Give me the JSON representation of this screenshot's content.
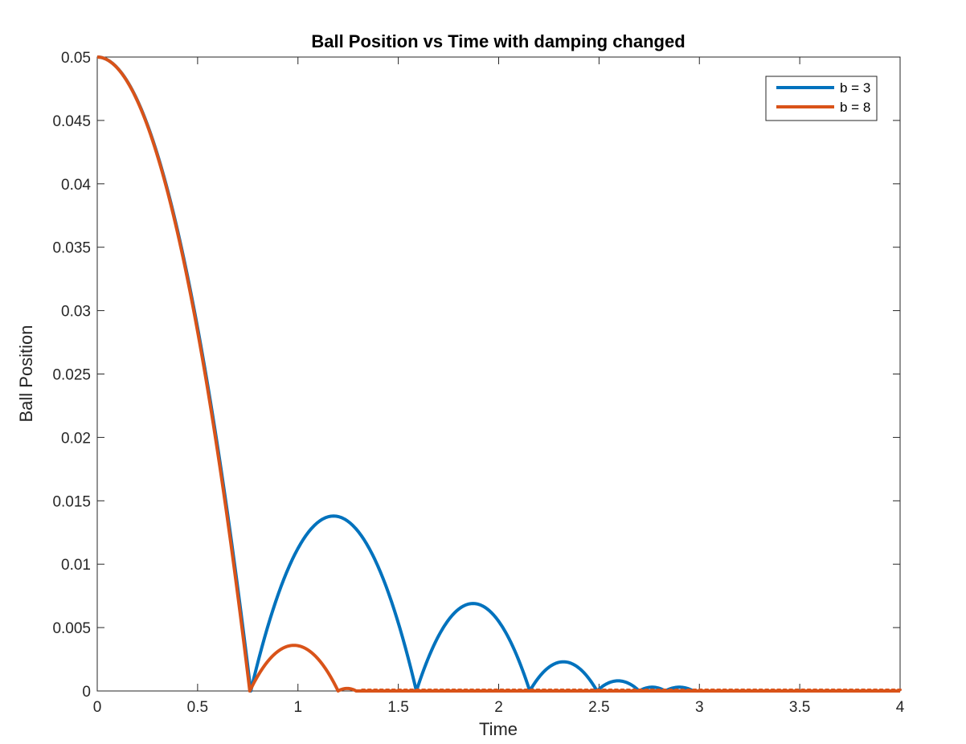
{
  "chart_data": {
    "type": "line",
    "title": "Ball Position vs Time with damping changed",
    "xlabel": "Time",
    "ylabel": "Ball Position",
    "xlim": [
      0,
      4
    ],
    "ylim": [
      0,
      0.05
    ],
    "xticks": [
      0,
      0.5,
      1,
      1.5,
      2,
      2.5,
      3,
      3.5,
      4
    ],
    "xtick_labels": [
      "0",
      "0.5",
      "1",
      "1.5",
      "2",
      "2.5",
      "3",
      "3.5",
      "4"
    ],
    "yticks": [
      0,
      0.005,
      0.01,
      0.015,
      0.02,
      0.025,
      0.03,
      0.035,
      0.04,
      0.045,
      0.05
    ],
    "ytick_labels": [
      "0",
      "0.005",
      "0.01",
      "0.015",
      "0.02",
      "0.025",
      "0.03",
      "0.035",
      "0.04",
      "0.045",
      "0.05"
    ],
    "grid": false,
    "legend_position": "top-right",
    "series": [
      {
        "name": "b = 3",
        "color": "#0072BD",
        "start": [
          0,
          0.05
        ],
        "fall_end": 0.765,
        "bounces": [
          {
            "t0": 0.765,
            "t1": 1.59,
            "peak": 0.0138
          },
          {
            "t0": 1.59,
            "t1": 2.155,
            "peak": 0.0069
          },
          {
            "t0": 2.155,
            "t1": 2.49,
            "peak": 0.0023
          },
          {
            "t0": 2.49,
            "t1": 2.7,
            "peak": 0.0008
          },
          {
            "t0": 2.7,
            "t1": 2.83,
            "peak": 0.0003
          },
          {
            "t0": 2.83,
            "t1": 2.97,
            "peak": 0.0003
          }
        ],
        "end_x": 4
      },
      {
        "name": "b = 8",
        "color": "#D95319",
        "start": [
          0,
          0.05
        ],
        "fall_end": 0.76,
        "bounces": [
          {
            "t0": 0.76,
            "t1": 1.2,
            "peak": 0.0036
          },
          {
            "t0": 1.2,
            "t1": 1.29,
            "peak": 0.0002
          }
        ],
        "end_x": 4
      }
    ]
  }
}
